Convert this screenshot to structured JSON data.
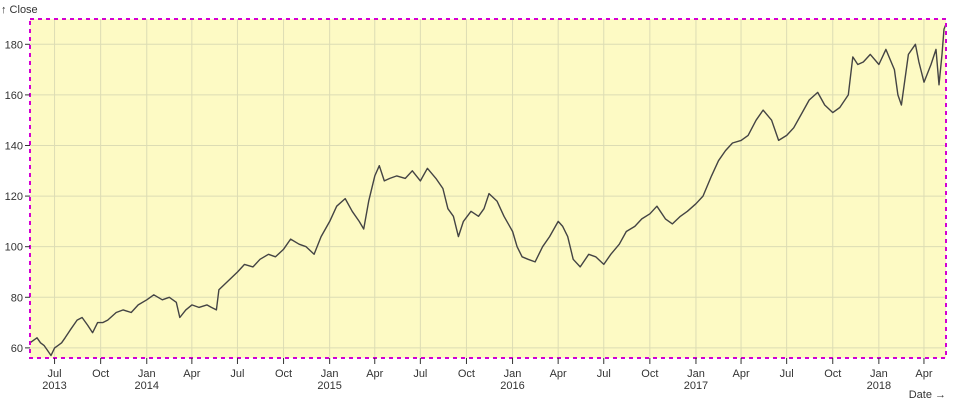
{
  "chart_data": {
    "type": "line",
    "title": "",
    "ylabel": "↑ Close",
    "xlabel": "Date →",
    "ylim": [
      56,
      190
    ],
    "xlim": [
      "2013-05-13",
      "2018-05-15"
    ],
    "grid": true,
    "colors": {
      "plot_background": "#fdfac4",
      "line": "#444444",
      "grid": "#dcdcb4",
      "frame": "#d300d3"
    },
    "y_ticks": [
      60,
      80,
      100,
      120,
      140,
      160,
      180
    ],
    "x_ticks": [
      {
        "date": "2013-07-01",
        "label": "Jul",
        "year": "2013"
      },
      {
        "date": "2013-10-01",
        "label": "Oct",
        "year": ""
      },
      {
        "date": "2014-01-01",
        "label": "Jan",
        "year": "2014"
      },
      {
        "date": "2014-04-01",
        "label": "Apr",
        "year": ""
      },
      {
        "date": "2014-07-01",
        "label": "Jul",
        "year": ""
      },
      {
        "date": "2014-10-01",
        "label": "Oct",
        "year": ""
      },
      {
        "date": "2015-01-01",
        "label": "Jan",
        "year": "2015"
      },
      {
        "date": "2015-04-01",
        "label": "Apr",
        "year": ""
      },
      {
        "date": "2015-07-01",
        "label": "Jul",
        "year": ""
      },
      {
        "date": "2015-10-01",
        "label": "Oct",
        "year": ""
      },
      {
        "date": "2016-01-01",
        "label": "Jan",
        "year": "2016"
      },
      {
        "date": "2016-04-01",
        "label": "Apr",
        "year": ""
      },
      {
        "date": "2016-07-01",
        "label": "Jul",
        "year": ""
      },
      {
        "date": "2016-10-01",
        "label": "Oct",
        "year": ""
      },
      {
        "date": "2017-01-01",
        "label": "Jan",
        "year": "2017"
      },
      {
        "date": "2017-04-01",
        "label": "Apr",
        "year": ""
      },
      {
        "date": "2017-07-01",
        "label": "Jul",
        "year": ""
      },
      {
        "date": "2017-10-01",
        "label": "Oct",
        "year": ""
      },
      {
        "date": "2018-01-01",
        "label": "Jan",
        "year": "2018"
      },
      {
        "date": "2018-04-01",
        "label": "Apr",
        "year": ""
      }
    ],
    "series": [
      {
        "points": [
          [
            "2013-05-13",
            62
          ],
          [
            "2013-05-20",
            63
          ],
          [
            "2013-05-27",
            64
          ],
          [
            "2013-06-03",
            62
          ],
          [
            "2013-06-10",
            61
          ],
          [
            "2013-06-17",
            59
          ],
          [
            "2013-06-24",
            57
          ],
          [
            "2013-07-01",
            60
          ],
          [
            "2013-07-08",
            61
          ],
          [
            "2013-07-15",
            62
          ],
          [
            "2013-07-22",
            64
          ],
          [
            "2013-08-01",
            67
          ],
          [
            "2013-08-15",
            71
          ],
          [
            "2013-08-25",
            72
          ],
          [
            "2013-09-05",
            69
          ],
          [
            "2013-09-15",
            66
          ],
          [
            "2013-09-25",
            70
          ],
          [
            "2013-10-05",
            70
          ],
          [
            "2013-10-15",
            71
          ],
          [
            "2013-11-01",
            74
          ],
          [
            "2013-11-15",
            75
          ],
          [
            "2013-12-01",
            74
          ],
          [
            "2013-12-15",
            77
          ],
          [
            "2014-01-01",
            79
          ],
          [
            "2014-01-15",
            81
          ],
          [
            "2014-02-01",
            79
          ],
          [
            "2014-02-15",
            80
          ],
          [
            "2014-03-01",
            78
          ],
          [
            "2014-03-08",
            72
          ],
          [
            "2014-03-20",
            75
          ],
          [
            "2014-04-01",
            77
          ],
          [
            "2014-04-15",
            76
          ],
          [
            "2014-05-01",
            77
          ],
          [
            "2014-05-10",
            76
          ],
          [
            "2014-05-20",
            75
          ],
          [
            "2014-05-25",
            83
          ],
          [
            "2014-06-10",
            86
          ],
          [
            "2014-07-01",
            90
          ],
          [
            "2014-07-15",
            93
          ],
          [
            "2014-08-01",
            92
          ],
          [
            "2014-08-15",
            95
          ],
          [
            "2014-09-01",
            97
          ],
          [
            "2014-09-15",
            96
          ],
          [
            "2014-10-01",
            99
          ],
          [
            "2014-10-15",
            103
          ],
          [
            "2014-11-01",
            101
          ],
          [
            "2014-11-15",
            100
          ],
          [
            "2014-12-01",
            97
          ],
          [
            "2014-12-15",
            104
          ],
          [
            "2015-01-01",
            110
          ],
          [
            "2015-01-15",
            116
          ],
          [
            "2015-02-01",
            119
          ],
          [
            "2015-02-15",
            114
          ],
          [
            "2015-03-01",
            110
          ],
          [
            "2015-03-10",
            107
          ],
          [
            "2015-03-20",
            118
          ],
          [
            "2015-04-01",
            128
          ],
          [
            "2015-04-10",
            132
          ],
          [
            "2015-04-20",
            126
          ],
          [
            "2015-05-01",
            127
          ],
          [
            "2015-05-15",
            128
          ],
          [
            "2015-06-01",
            127
          ],
          [
            "2015-06-15",
            130
          ],
          [
            "2015-07-01",
            126
          ],
          [
            "2015-07-15",
            131
          ],
          [
            "2015-08-01",
            127
          ],
          [
            "2015-08-15",
            123
          ],
          [
            "2015-08-25",
            115
          ],
          [
            "2015-09-05",
            112
          ],
          [
            "2015-09-15",
            104
          ],
          [
            "2015-09-25",
            110
          ],
          [
            "2015-10-10",
            114
          ],
          [
            "2015-10-25",
            112
          ],
          [
            "2015-11-05",
            115
          ],
          [
            "2015-11-15",
            121
          ],
          [
            "2015-12-01",
            118
          ],
          [
            "2015-12-15",
            112
          ],
          [
            "2016-01-01",
            106
          ],
          [
            "2016-01-10",
            100
          ],
          [
            "2016-01-20",
            96
          ],
          [
            "2016-02-01",
            95
          ],
          [
            "2016-02-15",
            94
          ],
          [
            "2016-03-01",
            100
          ],
          [
            "2016-03-15",
            104
          ],
          [
            "2016-04-01",
            110
          ],
          [
            "2016-04-10",
            108
          ],
          [
            "2016-04-20",
            104
          ],
          [
            "2016-05-01",
            95
          ],
          [
            "2016-05-15",
            92
          ],
          [
            "2016-06-01",
            97
          ],
          [
            "2016-06-15",
            96
          ],
          [
            "2016-07-01",
            93
          ],
          [
            "2016-07-15",
            97
          ],
          [
            "2016-08-01",
            101
          ],
          [
            "2016-08-15",
            106
          ],
          [
            "2016-09-01",
            108
          ],
          [
            "2016-09-15",
            111
          ],
          [
            "2016-10-01",
            113
          ],
          [
            "2016-10-15",
            116
          ],
          [
            "2016-11-01",
            111
          ],
          [
            "2016-11-15",
            109
          ],
          [
            "2016-12-01",
            112
          ],
          [
            "2016-12-15",
            114
          ],
          [
            "2017-01-01",
            117
          ],
          [
            "2017-01-15",
            120
          ],
          [
            "2017-02-01",
            128
          ],
          [
            "2017-02-15",
            134
          ],
          [
            "2017-03-01",
            138
          ],
          [
            "2017-03-15",
            141
          ],
          [
            "2017-04-01",
            142
          ],
          [
            "2017-04-15",
            144
          ],
          [
            "2017-05-01",
            150
          ],
          [
            "2017-05-15",
            154
          ],
          [
            "2017-06-01",
            150
          ],
          [
            "2017-06-15",
            142
          ],
          [
            "2017-07-01",
            144
          ],
          [
            "2017-07-15",
            147
          ],
          [
            "2017-08-01",
            153
          ],
          [
            "2017-08-15",
            158
          ],
          [
            "2017-09-01",
            161
          ],
          [
            "2017-09-15",
            156
          ],
          [
            "2017-10-01",
            153
          ],
          [
            "2017-10-15",
            155
          ],
          [
            "2017-11-01",
            160
          ],
          [
            "2017-11-10",
            175
          ],
          [
            "2017-11-20",
            172
          ],
          [
            "2017-12-01",
            173
          ],
          [
            "2017-12-15",
            176
          ],
          [
            "2018-01-01",
            172
          ],
          [
            "2018-01-15",
            178
          ],
          [
            "2018-02-01",
            170
          ],
          [
            "2018-02-08",
            160
          ],
          [
            "2018-02-15",
            156
          ],
          [
            "2018-03-01",
            176
          ],
          [
            "2018-03-15",
            180
          ],
          [
            "2018-03-22",
            173
          ],
          [
            "2018-04-01",
            165
          ],
          [
            "2018-04-15",
            172
          ],
          [
            "2018-04-25",
            178
          ],
          [
            "2018-05-01",
            164
          ],
          [
            "2018-05-07",
            176
          ],
          [
            "2018-05-11",
            186
          ],
          [
            "2018-05-15",
            188
          ]
        ]
      }
    ]
  }
}
